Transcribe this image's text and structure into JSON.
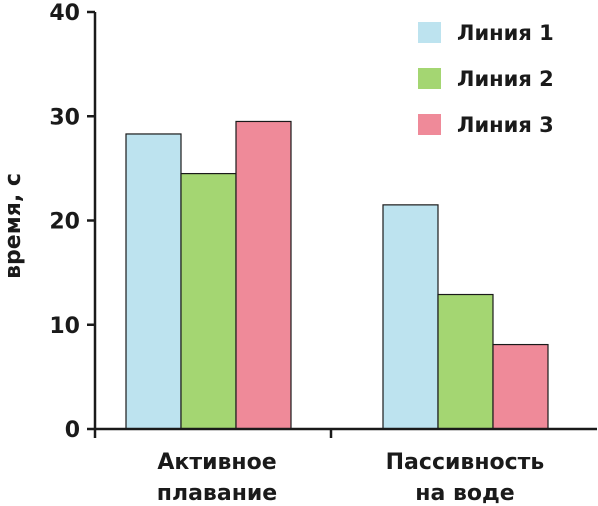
{
  "chart_data": {
    "type": "bar",
    "title": "",
    "xlabel": "",
    "ylabel": "время, с",
    "ylim": [
      0,
      40
    ],
    "yticks": [
      "0",
      "10",
      "20",
      "30",
      "40"
    ],
    "categories": [
      [
        "Активное",
        "плавание"
      ],
      [
        "Пассивность",
        "на воде"
      ]
    ],
    "series": [
      {
        "name": "Линия 1",
        "color": "#bde3ef",
        "values": [
          28.3,
          21.5
        ]
      },
      {
        "name": "Линия 2",
        "color": "#a4d672",
        "values": [
          24.5,
          12.9
        ]
      },
      {
        "name": "Линия 3",
        "color": "#ef8a99",
        "values": [
          29.5,
          8.1
        ]
      }
    ],
    "grid": false,
    "legend": "top-right"
  }
}
